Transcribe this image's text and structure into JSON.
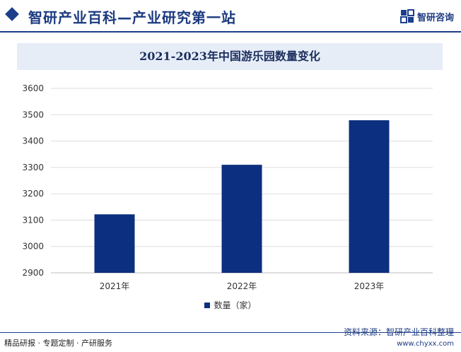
{
  "header": {
    "site_title": "智研产业百科—产业研究第一站",
    "logo_text": "智研咨询",
    "logo_icon": "zhiyan-logo-icon",
    "accent_color": "#1c3f8c"
  },
  "chart_data": {
    "type": "bar",
    "title": "2021-2023年中国游乐园数量变化",
    "categories": [
      "2021年",
      "2022年",
      "2023年"
    ],
    "series": [
      {
        "name": "数量（家）",
        "values": [
          3122,
          3310,
          3479
        ],
        "color": "#0d2f7f"
      }
    ],
    "xlabel": "",
    "ylabel": "",
    "ylim": [
      2900,
      3600
    ],
    "yticks": [
      2900,
      3000,
      3100,
      3200,
      3300,
      3400,
      3500,
      3600
    ],
    "grid": true,
    "legend": "bottom-center"
  },
  "footer": {
    "tagline": "精品研报 · 专题定制 · 产研服务",
    "source": "资料来源：智研产业百科整理",
    "url": "www.chyxx.com"
  }
}
